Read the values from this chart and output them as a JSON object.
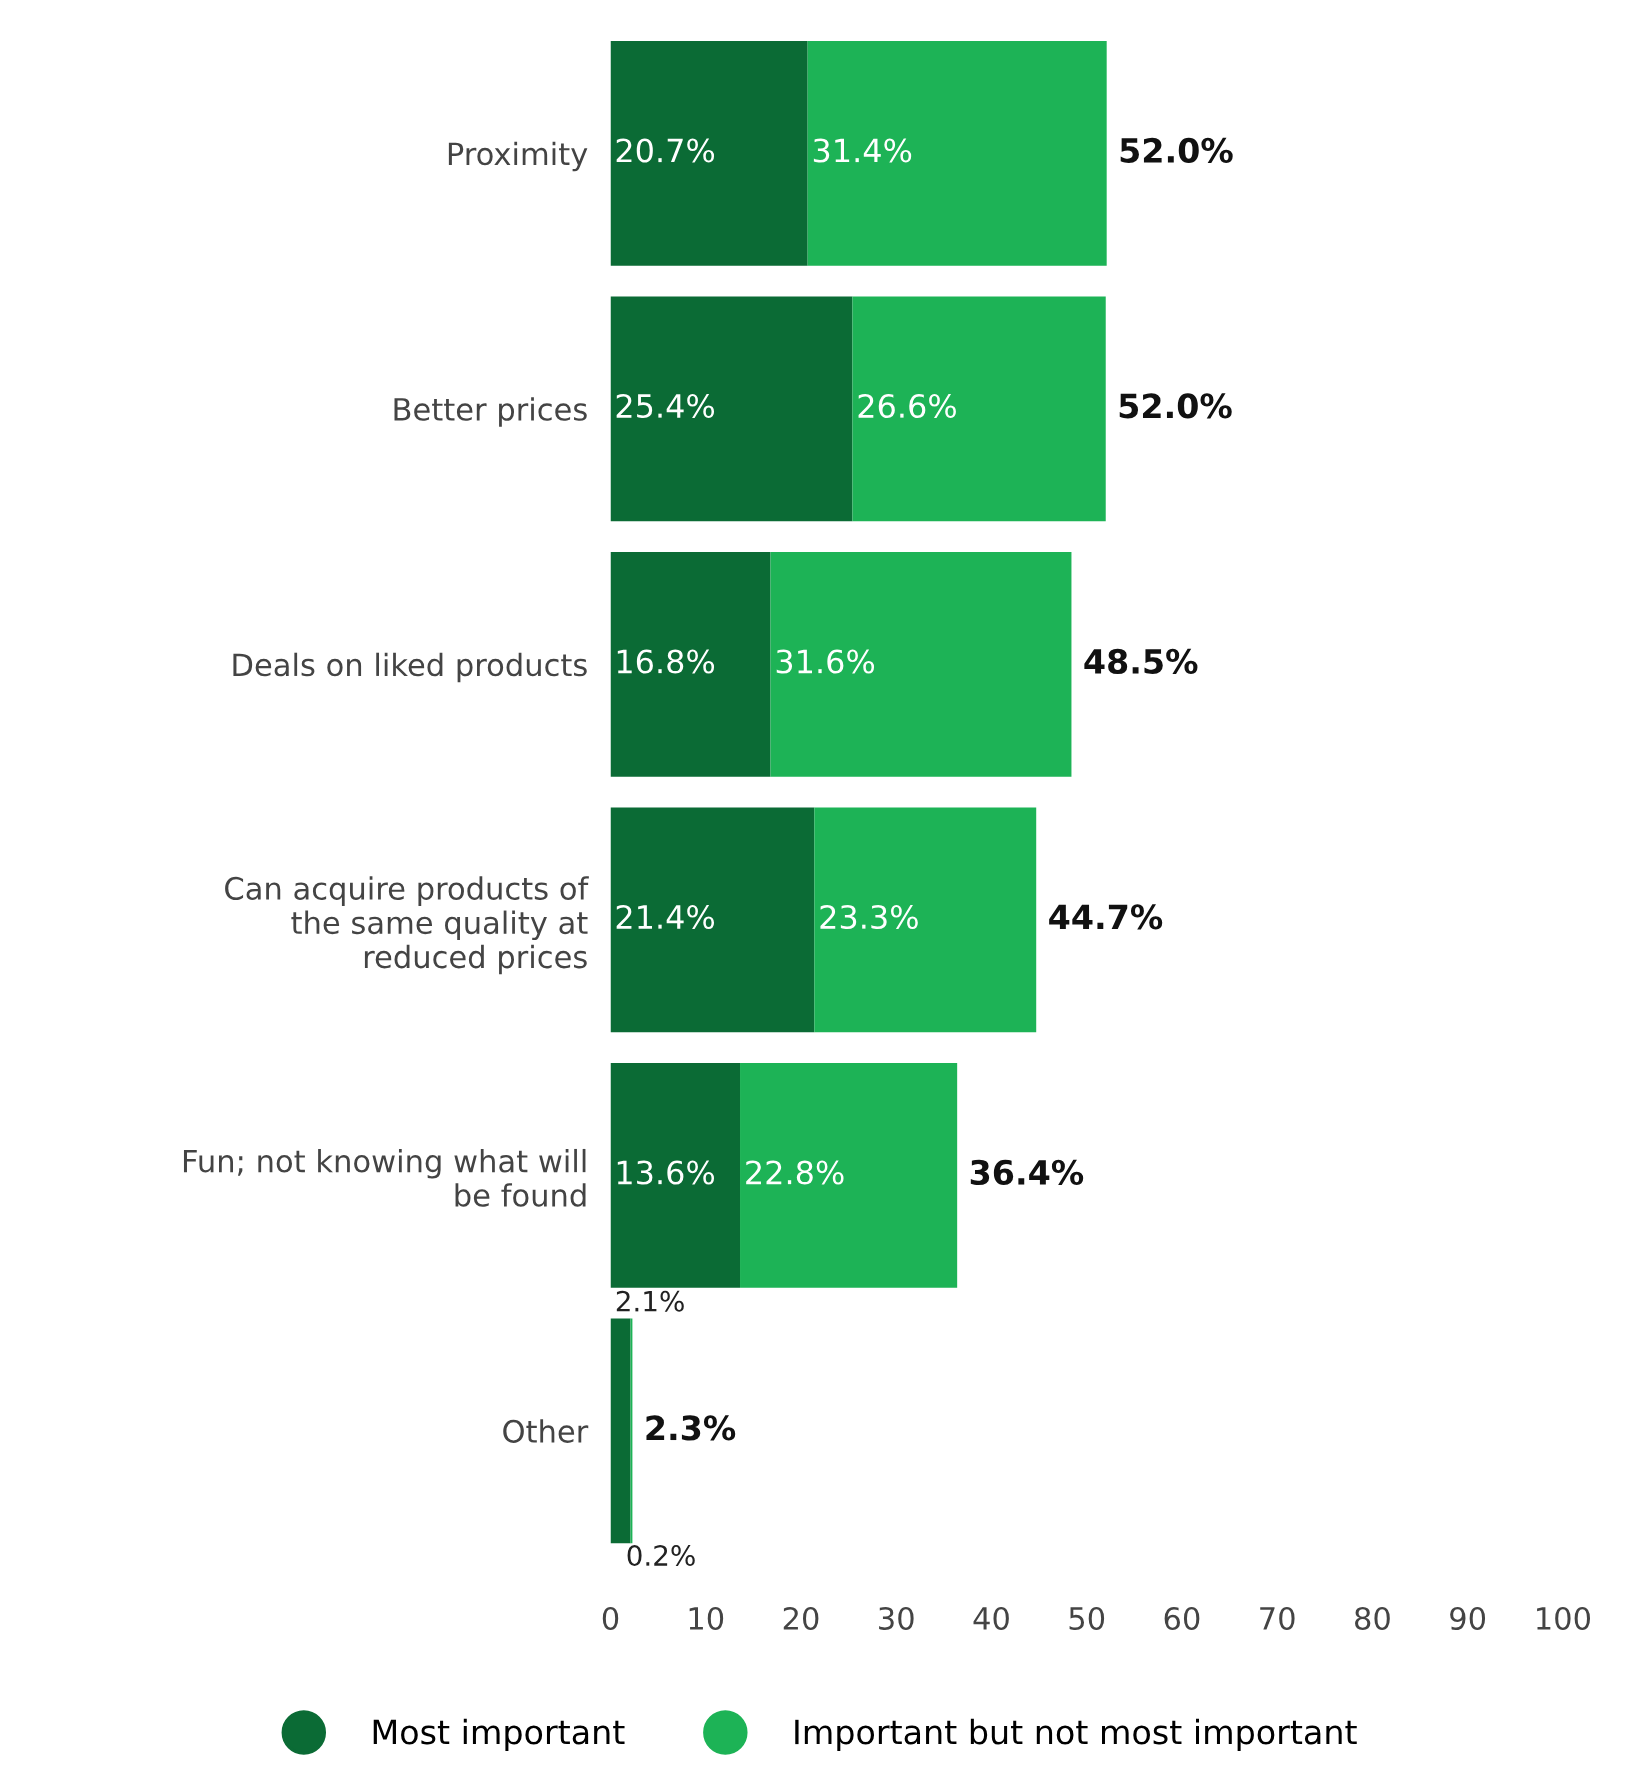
{
  "chart_data": {
    "type": "bar",
    "orientation": "horizontal",
    "stacked": true,
    "categories": [
      "Proximity",
      "Better prices",
      "Deals on liked products",
      "Can acquire products of\nthe same quality at\nreduced prices",
      "Fun; not knowing what will\nbe found",
      "Other"
    ],
    "series": [
      {
        "name": "Most important",
        "color": "#0b6b35",
        "values": [
          20.7,
          25.4,
          16.8,
          21.4,
          13.6,
          2.1
        ],
        "value_labels": [
          "20.7%",
          "25.4%",
          "16.8%",
          "21.4%",
          "13.6%",
          "2.1%"
        ]
      },
      {
        "name": "Important but not most important",
        "color": "#1db356",
        "values": [
          31.4,
          26.6,
          31.6,
          23.3,
          22.8,
          0.2
        ],
        "value_labels": [
          "31.4%",
          "26.6%",
          "31.6%",
          "23.3%",
          "22.8%",
          "0.2%"
        ]
      }
    ],
    "totals": [
      "52.0%",
      "52.0%",
      "48.5%",
      "44.7%",
      "36.4%",
      "2.3%"
    ],
    "xlim": [
      0,
      100
    ],
    "xticks": [
      0,
      10,
      20,
      30,
      40,
      50,
      60,
      70,
      80,
      90,
      100
    ],
    "grid": false,
    "legend": "bottom"
  }
}
